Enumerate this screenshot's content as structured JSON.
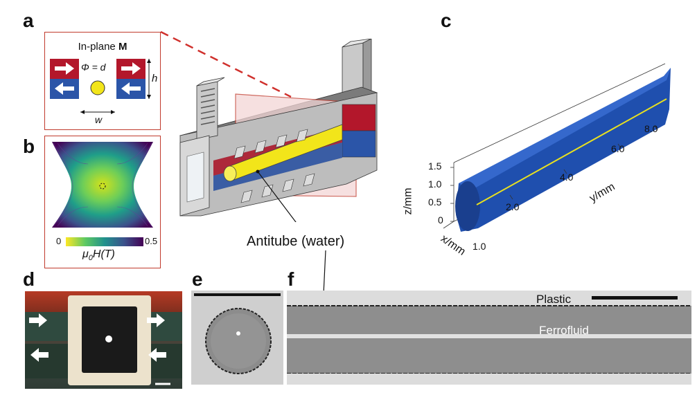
{
  "panels": {
    "a": "a",
    "b": "b",
    "c": "c",
    "d": "d",
    "e": "e",
    "f": "f"
  },
  "panel_a": {
    "title_prefix": "In-plane ",
    "title_bold": "M",
    "phi_label": "Φ = d",
    "h_label": "h",
    "w_label": "w"
  },
  "panel_b": {
    "scale_min": "0",
    "scale_max": "0.5",
    "scale_label": "μ0H(T)",
    "scale_label_main": "μ",
    "scale_label_sub": "0",
    "scale_label_rest": "H(T)"
  },
  "center": {
    "callout": "Antitube (water)"
  },
  "panel_c": {
    "zlabel": "z/mm",
    "ylabel": "y/mm",
    "xlabel": "x/mm",
    "zticks": [
      "1.5",
      "1.0",
      "0.5",
      "0"
    ],
    "yticks": [
      "2.0",
      "4.0",
      "6.0",
      "8.0"
    ],
    "xticks": [
      "1.0"
    ]
  },
  "panel_f": {
    "plastic": "Plastic",
    "ferrofluid": "Ferrofluid"
  },
  "colors": {
    "red_magnet": "#b3172b",
    "blue_magnet": "#2b55a8",
    "yellow": "#f2e51a",
    "frame_red": "#c0392b",
    "tube_blue": "#1f4fae"
  }
}
